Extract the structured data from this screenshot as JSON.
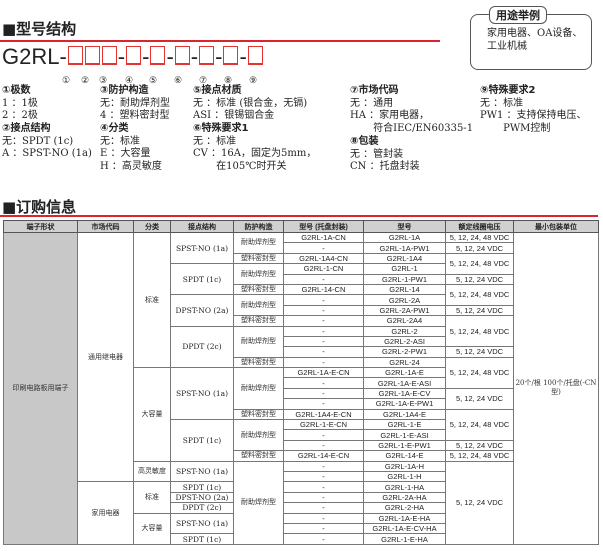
{
  "section1": {
    "title": "■型号结构",
    "model_prefix": "G2RL-",
    "circled": [
      "①",
      "②",
      "③",
      "④",
      "⑤",
      "⑥",
      "⑦",
      "⑧",
      "⑨"
    ]
  },
  "usage": {
    "label": "用途举例",
    "text": "家用电器、OA设备、工业机械"
  },
  "specs": [
    {
      "heading": "①极数",
      "lines": [
        "1 ：1极",
        "2 ：2极"
      ]
    },
    {
      "heading": "②接点结构",
      "lines": [
        "无：SPDT (1c)",
        "A ：SPST-NO (1a)"
      ]
    },
    {
      "heading": "③防护构造",
      "lines": [
        "无：耐助焊剂型",
        "4 ：塑料密封型"
      ]
    },
    {
      "heading": "④分类",
      "lines": [
        "无：标准",
        "E ：大容量",
        "H ：高灵敏度"
      ]
    },
    {
      "heading": "⑤接点材质",
      "lines": [
        "无 ：标准 (银合金，无镉)",
        "ASI ：银锡铟合金"
      ]
    },
    {
      "heading": "⑥特殊要求1",
      "lines": [
        "无 ：标准",
        "CV ：16A，固定为5mm，",
        "　　 在105℃时开关"
      ]
    },
    {
      "heading": "⑦市场代码",
      "lines": [
        "无 ：通用",
        "HA ：家用电器，",
        "　　 符合IEC/EN60335-1"
      ]
    },
    {
      "heading": "⑧包装",
      "lines": [
        "无 ：管封装",
        "CN ：托盘封装"
      ]
    },
    {
      "heading": "⑨特殊要求2",
      "lines": [
        "无 ：标准",
        "PW1 ：支持保持电压、",
        "　　 PWM控制"
      ]
    }
  ],
  "section2": {
    "title": "■订购信息"
  },
  "table": {
    "headers": [
      "端子形状",
      "市场代码",
      "分类",
      "接点结构",
      "防护构造",
      "型号 (托盘封装)",
      "型号",
      "额定线圈电压",
      "最小包装单位"
    ],
    "rows": [
      [
        [
          "印刷电路板用端子",
          30
        ],
        [
          "通用继电器",
          24
        ],
        [
          "标准",
          13
        ],
        [
          "SPST-NO (1a)",
          3
        ],
        [
          "耐助焊剂型",
          2
        ],
        [
          "G2RL-1A-CN",
          1
        ],
        [
          "G2RL-1A",
          1
        ],
        [
          "5, 12, 24, 48 VDC",
          1
        ],
        [
          "20个/根 100个/托盘(-CN型)",
          30
        ]
      ],
      [
        [
          "-",
          1
        ],
        [
          "G2RL-1A-PW1",
          1
        ],
        [
          "5, 12, 24 VDC",
          1
        ]
      ],
      [
        [
          "塑料密封型",
          1
        ],
        [
          "G2RL-1A4-CN",
          1
        ],
        [
          "G2RL-1A4",
          1
        ],
        [
          "5, 12, 24, 48 VDC",
          2
        ]
      ],
      [
        [
          "SPDT (1c)",
          3
        ],
        [
          "耐助焊剂型",
          2
        ],
        [
          "G2RL-1-CN",
          1
        ],
        [
          "G2RL-1",
          1
        ]
      ],
      [
        [
          "-",
          1
        ],
        [
          "G2RL-1-PW1",
          1
        ],
        [
          "5, 12, 24 VDC",
          1
        ]
      ],
      [
        [
          "塑料密封型",
          1
        ],
        [
          "G2RL-14-CN",
          1
        ],
        [
          "G2RL-14",
          1
        ],
        [
          "5, 12, 24, 48 VDC",
          2
        ]
      ],
      [
        [
          "DPST-NO (2a)",
          3
        ],
        [
          "耐助焊剂型",
          2
        ],
        [
          "-",
          1
        ],
        [
          "G2RL-2A",
          1
        ]
      ],
      [
        [
          "-",
          1
        ],
        [
          "G2RL-2A-PW1",
          1
        ],
        [
          "5, 12, 24 VDC",
          1
        ]
      ],
      [
        [
          "塑料密封型",
          1
        ],
        [
          "-",
          1
        ],
        [
          "G2RL-2A4",
          1
        ],
        [
          "5, 12, 24, 48 VDC",
          3
        ]
      ],
      [
        [
          "DPDT (2c)",
          4
        ],
        [
          "耐助焊剂型",
          3
        ],
        [
          "-",
          1
        ],
        [
          "G2RL-2",
          1
        ]
      ],
      [
        [
          "-",
          1
        ],
        [
          "G2RL-2-ASI",
          1
        ]
      ],
      [
        [
          "-",
          1
        ],
        [
          "G2RL-2-PW1",
          1
        ],
        [
          "5, 12, 24 VDC",
          1
        ]
      ],
      [
        [
          "塑料密封型",
          1
        ],
        [
          "-",
          1
        ],
        [
          "G2RL-24",
          1
        ],
        [
          "5, 12, 24, 48 VDC",
          3
        ]
      ],
      [
        [
          "大容量",
          9
        ],
        [
          "SPST-NO (1a)",
          5
        ],
        [
          "耐助焊剂型",
          4
        ],
        [
          "G2RL-1A-E-CN",
          1
        ],
        [
          "G2RL-1A-E",
          1
        ]
      ],
      [
        [
          "-",
          1
        ],
        [
          "G2RL-1A-E-ASI",
          1
        ]
      ],
      [
        [
          "-",
          1
        ],
        [
          "G2RL-1A-E-CV",
          1
        ],
        [
          "5, 12, 24 VDC",
          2
        ]
      ],
      [
        [
          "-",
          1
        ],
        [
          "G2RL-1A-E-PW1",
          1
        ]
      ],
      [
        [
          "塑料密封型",
          1
        ],
        [
          "G2RL-1A4-E-CN",
          1
        ],
        [
          "G2RL-1A4-E",
          1
        ],
        [
          "5, 12, 24, 48 VDC",
          3
        ]
      ],
      [
        [
          "SPDT (1c)",
          4
        ],
        [
          "耐助焊剂型",
          3
        ],
        [
          "G2RL-1-E-CN",
          1
        ],
        [
          "G2RL-1-E",
          1
        ]
      ],
      [
        [
          "-",
          1
        ],
        [
          "G2RL-1-E-ASI",
          1
        ]
      ],
      [
        [
          "-",
          1
        ],
        [
          "G2RL-1-E-PW1",
          1
        ],
        [
          "5, 12, 24 VDC",
          1
        ]
      ],
      [
        [
          "塑料密封型",
          1
        ],
        [
          "G2RL-14-E-CN",
          1
        ],
        [
          "G2RL-14-E",
          1
        ],
        [
          "5, 12, 24, 48 VDC",
          1
        ]
      ],
      [
        [
          "高灵敏度",
          2
        ],
        [
          "SPST-NO (1a)",
          2
        ],
        [
          "耐助焊剂型",
          8
        ],
        [
          "-",
          1
        ],
        [
          "G2RL-1A-H",
          1
        ],
        [
          "5, 12, 24 VDC",
          8
        ]
      ],
      [
        [
          "-",
          1
        ],
        [
          "G2RL-1-H",
          1
        ]
      ],
      [
        [
          "家用电器",
          6
        ],
        [
          "标准",
          3
        ],
        [
          "SPDT (1c)",
          1
        ],
        [
          "-",
          1
        ],
        [
          "G2RL-1-HA",
          1
        ]
      ],
      [
        [
          "DPST-NO (2a)",
          1
        ],
        [
          "-",
          1
        ],
        [
          "G2RL-2A-HA",
          1
        ]
      ],
      [
        [
          "DPDT (2c)",
          1
        ],
        [
          "-",
          1
        ],
        [
          "G2RL-2-HA",
          1
        ]
      ],
      [
        [
          "大容量",
          3
        ],
        [
          "SPST-NO (1a)",
          2
        ],
        [
          "-",
          1
        ],
        [
          "G2RL-1A-E-HA",
          1
        ]
      ],
      [
        [
          "-",
          1
        ],
        [
          "G2RL-1A-E-CV-HA",
          1
        ]
      ],
      [
        [
          "SPDT (1c)",
          1
        ],
        [
          "-",
          1
        ],
        [
          "G2RL-1-E-HA",
          1
        ]
      ]
    ]
  },
  "colors": {
    "accent": "#d9252b",
    "header_bg": "#d0d0d0",
    "terminal_bg": "#c8c8c8"
  }
}
